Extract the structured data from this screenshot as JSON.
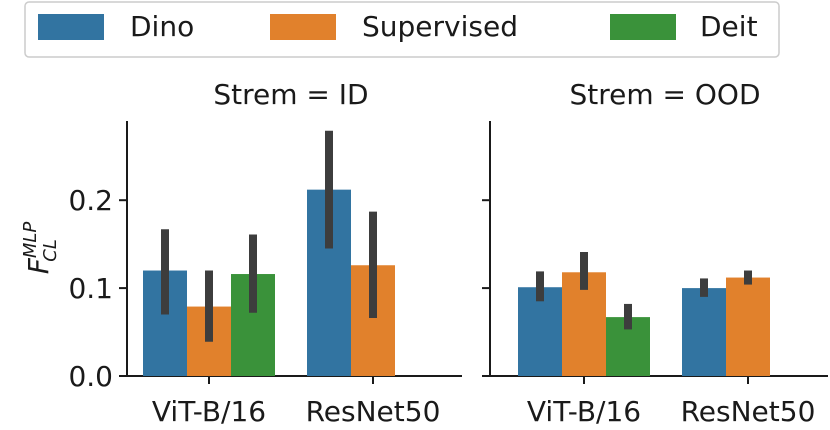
{
  "chart_data": {
    "type": "bar",
    "ylabel": "F",
    "ylabel_sup": "MLP",
    "ylabel_sub": "CL",
    "ylim": [
      0,
      0.28
    ],
    "yticks": [
      {
        "value": 0.0,
        "label": "0.0"
      },
      {
        "value": 0.1,
        "label": "0.1"
      },
      {
        "value": 0.2,
        "label": "0.2"
      }
    ],
    "legend": {
      "position": "top",
      "entries": [
        {
          "name": "Dino",
          "color": "#3274a1"
        },
        {
          "name": "Supervised",
          "color": "#e1812c"
        },
        {
          "name": "Deit",
          "color": "#3a923a"
        }
      ]
    },
    "err_color": "#3d3d3d",
    "panels": [
      {
        "title": "Strem = ID",
        "categories": [
          "ViT-B/16",
          "ResNet50"
        ],
        "series": [
          {
            "name": "Dino",
            "values": [
              0.12,
              0.212
            ],
            "err_low": [
              0.07,
              0.145
            ],
            "err_high": [
              0.167,
              0.279
            ]
          },
          {
            "name": "Supervised",
            "values": [
              0.079,
              0.126
            ],
            "err_low": [
              0.039,
              0.066
            ],
            "err_high": [
              0.12,
              0.187
            ]
          },
          {
            "name": "Deit",
            "values": [
              0.116,
              null
            ],
            "err_low": [
              0.072,
              null
            ],
            "err_high": [
              0.161,
              null
            ]
          }
        ]
      },
      {
        "title": "Strem = OOD",
        "categories": [
          "ViT-B/16",
          "ResNet50"
        ],
        "series": [
          {
            "name": "Dino",
            "values": [
              0.101,
              0.1
            ],
            "err_low": [
              0.085,
              0.09
            ],
            "err_high": [
              0.119,
              0.111
            ]
          },
          {
            "name": "Supervised",
            "values": [
              0.118,
              0.112
            ],
            "err_low": [
              0.098,
              0.104
            ],
            "err_high": [
              0.141,
              0.12
            ]
          },
          {
            "name": "Deit",
            "values": [
              0.067,
              null
            ],
            "err_low": [
              0.053,
              null
            ],
            "err_high": [
              0.082,
              null
            ]
          }
        ]
      }
    ]
  }
}
